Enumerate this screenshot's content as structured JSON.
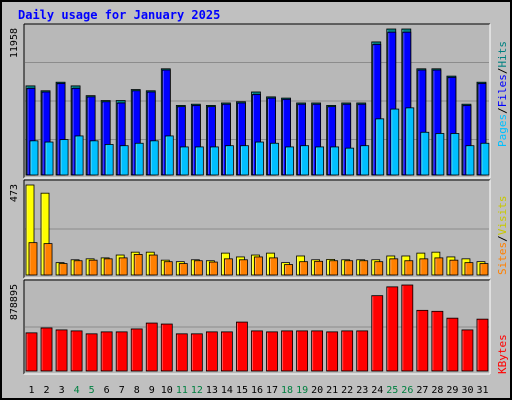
{
  "title": "Daily usage for January 2025",
  "colors": {
    "background": "#C0C0C0",
    "plot_bg": "#B8B8B8",
    "title": "#0000FF",
    "hits": "#008080",
    "files": "#0000FF",
    "pages": "#00C0FF",
    "visits": "#FFFF00",
    "sites": "#FF8000",
    "kbytes": "#FF0000",
    "weekend": "#008040"
  },
  "legend": {
    "hits": "Hits",
    "files": "Files",
    "pages": "Pages",
    "visits": "Visits",
    "sites": "Sites",
    "kbytes": "KBytes",
    "sep": "/"
  },
  "chart_data": [
    {
      "type": "bar",
      "name": "hits-files-pages",
      "ymax_label": "11958",
      "ylim": [
        0,
        11958
      ],
      "categories": [
        "1",
        "2",
        "3",
        "4",
        "5",
        "6",
        "7",
        "8",
        "9",
        "10",
        "11",
        "12",
        "13",
        "14",
        "15",
        "16",
        "17",
        "18",
        "19",
        "20",
        "21",
        "22",
        "23",
        "24",
        "25",
        "26",
        "27",
        "28",
        "29",
        "30",
        "31"
      ],
      "weekend_days": [
        "4",
        "5",
        "11",
        "12",
        "18",
        "19",
        "25",
        "26"
      ],
      "series": [
        {
          "name": "Hits",
          "values": [
            7300,
            6900,
            7600,
            7300,
            6500,
            6100,
            6100,
            7000,
            6900,
            8700,
            5700,
            5800,
            5700,
            5900,
            6000,
            6800,
            6400,
            6300,
            5900,
            5900,
            5700,
            5900,
            5900,
            10900,
            11958,
            11958,
            8700,
            8700,
            8100,
            5800,
            7600
          ]
        },
        {
          "name": "Files",
          "values": [
            7100,
            6800,
            7500,
            7100,
            6400,
            6000,
            5900,
            6900,
            6800,
            8600,
            5600,
            5700,
            5600,
            5800,
            5900,
            6600,
            6300,
            6200,
            5800,
            5800,
            5600,
            5800,
            5800,
            10700,
            11700,
            11700,
            8600,
            8600,
            8000,
            5700,
            7500
          ]
        },
        {
          "name": "Pages",
          "values": [
            2800,
            2700,
            2900,
            3200,
            2800,
            2500,
            2400,
            2600,
            2800,
            3200,
            2300,
            2300,
            2300,
            2400,
            2400,
            2700,
            2600,
            2300,
            2400,
            2300,
            2300,
            2200,
            2400,
            4600,
            5400,
            5500,
            3500,
            3400,
            3400,
            2400,
            2600
          ]
        }
      ]
    },
    {
      "type": "bar",
      "name": "visits-sites",
      "ymax_label": "473",
      "ylim": [
        0,
        473
      ],
      "categories": [
        "1",
        "2",
        "3",
        "4",
        "5",
        "6",
        "7",
        "8",
        "9",
        "10",
        "11",
        "12",
        "13",
        "14",
        "15",
        "16",
        "17",
        "18",
        "19",
        "20",
        "21",
        "22",
        "23",
        "24",
        "25",
        "26",
        "27",
        "28",
        "29",
        "30",
        "31"
      ],
      "series": [
        {
          "name": "Visits",
          "values": [
            473,
            430,
            65,
            80,
            85,
            90,
            105,
            120,
            120,
            78,
            70,
            80,
            75,
            115,
            95,
            105,
            115,
            65,
            100,
            80,
            82,
            80,
            80,
            80,
            100,
            100,
            115,
            120,
            95,
            85,
            70
          ]
        },
        {
          "name": "Sites",
          "values": [
            170,
            165,
            60,
            75,
            78,
            85,
            90,
            108,
            105,
            70,
            60,
            75,
            68,
            85,
            80,
            95,
            90,
            55,
            70,
            72,
            75,
            75,
            75,
            70,
            85,
            75,
            85,
            90,
            78,
            65,
            60
          ]
        }
      ]
    },
    {
      "type": "bar",
      "name": "kbytes",
      "ymax_label": "878895",
      "ylim": [
        0,
        878895
      ],
      "categories": [
        "1",
        "2",
        "3",
        "4",
        "5",
        "6",
        "7",
        "8",
        "9",
        "10",
        "11",
        "12",
        "13",
        "14",
        "15",
        "16",
        "17",
        "18",
        "19",
        "20",
        "21",
        "22",
        "23",
        "24",
        "25",
        "26",
        "27",
        "28",
        "29",
        "30",
        "31"
      ],
      "series": [
        {
          "name": "KBytes",
          "values": [
            390000,
            440000,
            420000,
            410000,
            380000,
            400000,
            400000,
            430000,
            490000,
            480000,
            380000,
            380000,
            400000,
            400000,
            500000,
            410000,
            400000,
            410000,
            410000,
            410000,
            400000,
            410000,
            410000,
            770000,
            860000,
            878895,
            620000,
            610000,
            540000,
            420000,
            530000
          ]
        }
      ]
    }
  ]
}
